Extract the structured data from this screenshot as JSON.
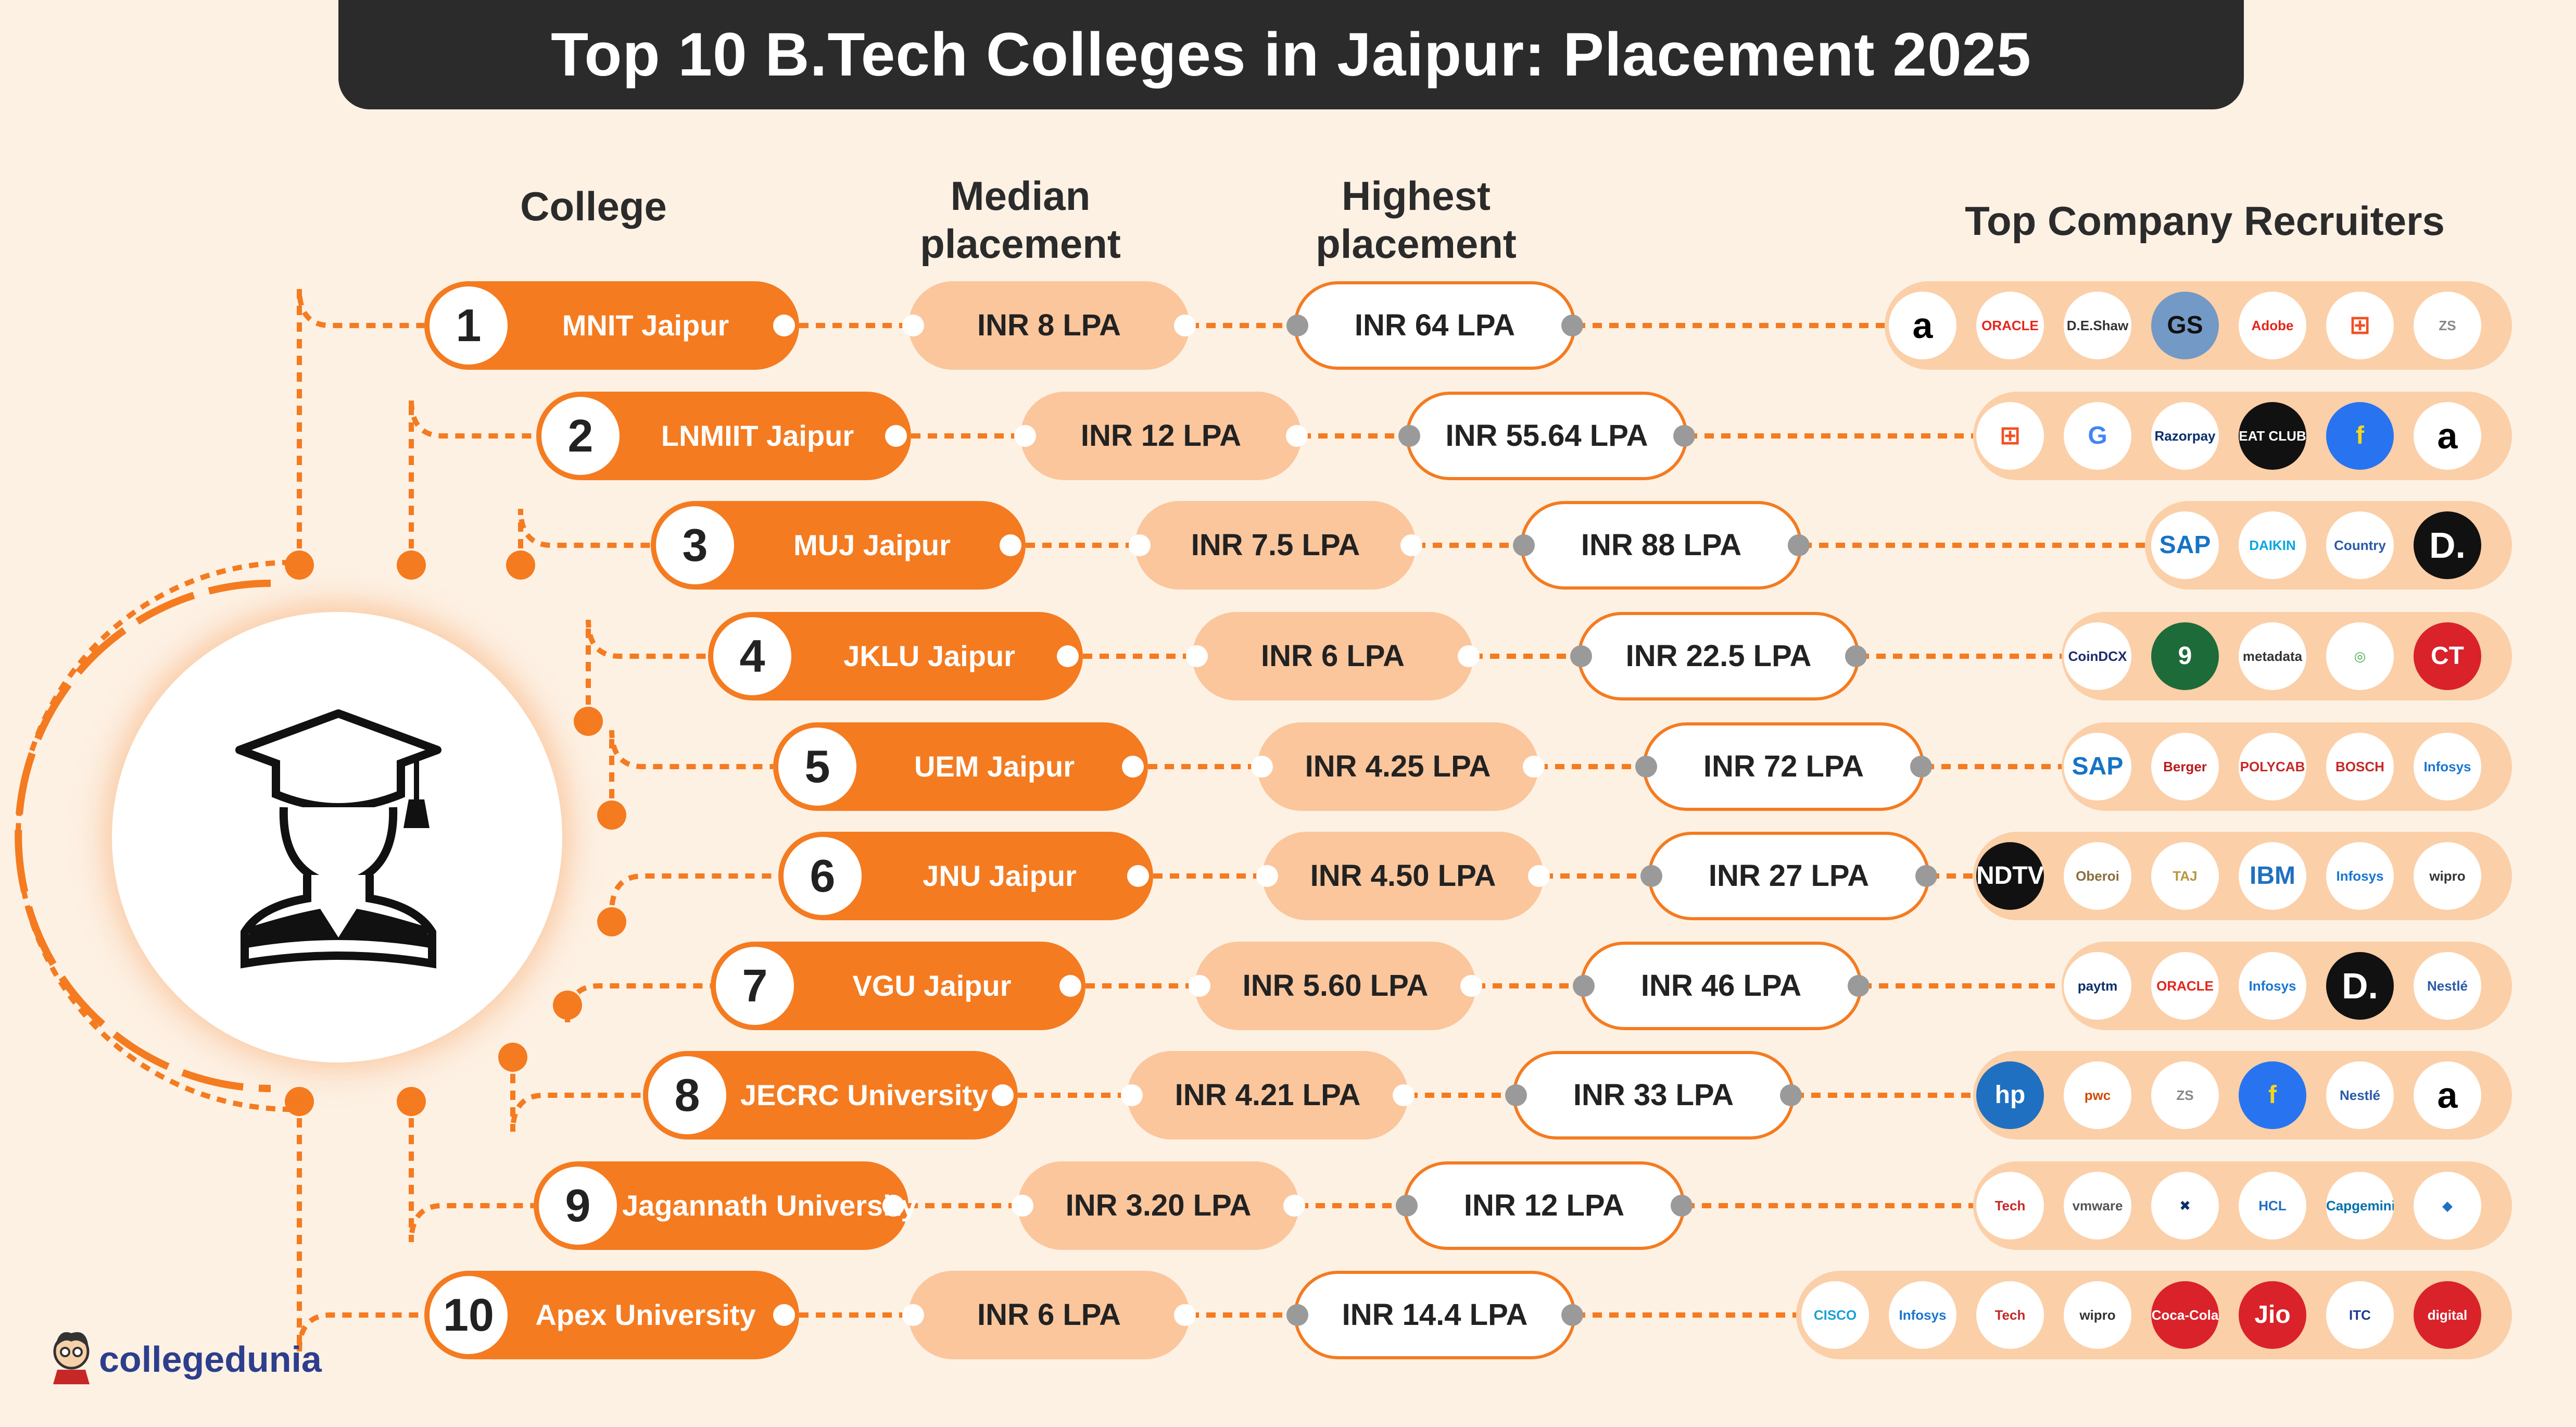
{
  "title": "Top 10  B.Tech Colleges in Jaipur: Placement 2025",
  "headers": {
    "college": "College",
    "median": [
      "Median",
      "placement"
    ],
    "highest": [
      "Highest",
      "placement"
    ],
    "recruiters": "Top Company Recruiters"
  },
  "rows": [
    {
      "num": "1",
      "college": "MNIT Jaipur",
      "median": "INR 8 LPA",
      "highest": "INR 64 LPA",
      "recruiters": [
        {
          "name": "amazon",
          "text": "a",
          "color": "#000"
        },
        {
          "name": "oracle",
          "text": "ORACLE",
          "color": "#e4261c"
        },
        {
          "name": "de-shaw",
          "text": "D.E.Shaw & Co",
          "color": "#333"
        },
        {
          "name": "goldman-sachs",
          "text": "GS",
          "color": "#7399c6"
        },
        {
          "name": "adobe",
          "text": "Adobe",
          "color": "#e4261c"
        },
        {
          "name": "microsoft",
          "text": "⊞",
          "color": "#f25022"
        },
        {
          "name": "zs",
          "text": "ZS",
          "color": "#888"
        }
      ]
    },
    {
      "num": "2",
      "college": "LNMIIT Jaipur",
      "median": "INR 12 LPA",
      "highest": "INR 55.64 LPA",
      "recruiters": [
        {
          "name": "microsoft",
          "text": "⊞",
          "color": "#f25022"
        },
        {
          "name": "google",
          "text": "G",
          "color": "#4285f4"
        },
        {
          "name": "razorpay",
          "text": "Razorpay",
          "color": "#0b2e6b"
        },
        {
          "name": "eatclub",
          "text": "EAT CLUB",
          "color": "#fff"
        },
        {
          "name": "flipkart",
          "text": "f",
          "color": "#f7d51d"
        },
        {
          "name": "amazon",
          "text": "a",
          "color": "#000"
        }
      ]
    },
    {
      "num": "3",
      "college": "MUJ Jaipur",
      "median": "INR 7.5 LPA",
      "highest": "INR 88 LPA",
      "recruiters": [
        {
          "name": "sap",
          "text": "SAP",
          "color": "#1673c6"
        },
        {
          "name": "daikin",
          "text": "DAIKIN",
          "color": "#0aa5e0"
        },
        {
          "name": "country-delight",
          "text": "Country Delight",
          "color": "#2a5aa8"
        },
        {
          "name": "d-logo",
          "text": "D.",
          "color": "#fff"
        }
      ]
    },
    {
      "num": "4",
      "college": "JKLU Jaipur",
      "median": "INR 6 LPA",
      "highest": "INR 22.5 LPA",
      "recruiters": [
        {
          "name": "coindcx",
          "text": "CoinDCX",
          "color": "#1b2a6b"
        },
        {
          "name": "nine-logo",
          "text": "9",
          "color": "#fff"
        },
        {
          "name": "metadata",
          "text": "metadata",
          "color": "#333"
        },
        {
          "name": "swirl-logo",
          "text": "◎",
          "color": "#4caf50"
        },
        {
          "name": "ct-logo",
          "text": "CT",
          "color": "#fff"
        }
      ]
    },
    {
      "num": "5",
      "college": "UEM Jaipur",
      "median": "INR 4.25 LPA",
      "highest": "INR 72 LPA",
      "recruiters": [
        {
          "name": "sap",
          "text": "SAP",
          "color": "#1673c6"
        },
        {
          "name": "berger",
          "text": "Berger",
          "color": "#b71c1c"
        },
        {
          "name": "polycab",
          "text": "POLYCAB",
          "color": "#c62828"
        },
        {
          "name": "bosch",
          "text": "BOSCH",
          "color": "#c62828"
        },
        {
          "name": "infosys",
          "text": "Infosys",
          "color": "#1976d2"
        }
      ]
    },
    {
      "num": "6",
      "college": "JNU Jaipur",
      "median": "INR 4.50 LPA",
      "highest": "INR 27 LPA",
      "recruiters": [
        {
          "name": "ndtv",
          "text": "NDTV",
          "color": "#fff"
        },
        {
          "name": "oberoi",
          "text": "Oberoi",
          "color": "#8a6d3b"
        },
        {
          "name": "taj",
          "text": "TAJ",
          "color": "#b8963e"
        },
        {
          "name": "ibm",
          "text": "IBM",
          "color": "#1f70c1"
        },
        {
          "name": "infosys",
          "text": "Infosys",
          "color": "#1976d2"
        },
        {
          "name": "wipro",
          "text": "wipro",
          "color": "#333"
        }
      ]
    },
    {
      "num": "7",
      "college": "VGU Jaipur",
      "median": "INR 5.60 LPA",
      "highest": "INR 46 LPA",
      "recruiters": [
        {
          "name": "paytm",
          "text": "paytm",
          "color": "#0b2e6b"
        },
        {
          "name": "oracle",
          "text": "ORACLE",
          "color": "#e4261c"
        },
        {
          "name": "infosys",
          "text": "Infosys",
          "color": "#1976d2"
        },
        {
          "name": "d-logo",
          "text": "D.",
          "color": "#fff"
        },
        {
          "name": "nestle",
          "text": "Nestlé",
          "color": "#2a5aa8"
        }
      ]
    },
    {
      "num": "8",
      "college": "JECRC University",
      "median": "INR 4.21 LPA",
      "highest": "INR 33 LPA",
      "recruiters": [
        {
          "name": "hp",
          "text": "hp",
          "color": "#fff"
        },
        {
          "name": "pwc",
          "text": "pwc",
          "color": "#d04a02"
        },
        {
          "name": "zs",
          "text": "ZS",
          "color": "#888"
        },
        {
          "name": "flipkart",
          "text": "f",
          "color": "#f7d51d"
        },
        {
          "name": "nestle",
          "text": "Nestlé",
          "color": "#2a5aa8"
        },
        {
          "name": "amazon",
          "text": "a",
          "color": "#000"
        }
      ]
    },
    {
      "num": "9",
      "college": "Jagannath University",
      "median": "INR 3.20 LPA",
      "highest": "INR 12 LPA",
      "recruiters": [
        {
          "name": "tech-mahindra",
          "text": "Tech Mahindra",
          "color": "#c62828"
        },
        {
          "name": "vmware",
          "text": "vmware",
          "color": "#555"
        },
        {
          "name": "bank-logo",
          "text": "✖",
          "color": "#0b2e6b"
        },
        {
          "name": "hcl",
          "text": "HCL",
          "color": "#1f70c1"
        },
        {
          "name": "capgemini",
          "text": "Capgemini",
          "color": "#0070ad"
        },
        {
          "name": "cube-logo",
          "text": "◆",
          "color": "#1f70c1"
        }
      ]
    },
    {
      "num": "10",
      "college": "Apex University",
      "median": "INR 6 LPA",
      "highest": "INR 14.4 LPA",
      "recruiters": [
        {
          "name": "cisco",
          "text": "CISCO",
          "color": "#1ba0d7"
        },
        {
          "name": "infosys",
          "text": "Infosys",
          "color": "#1976d2"
        },
        {
          "name": "tech-mahindra",
          "text": "Tech Mahindra",
          "color": "#c62828"
        },
        {
          "name": "wipro",
          "text": "wipro",
          "color": "#333"
        },
        {
          "name": "coca-cola",
          "text": "Coca-Cola",
          "color": "#fff"
        },
        {
          "name": "jio",
          "text": "Jio",
          "color": "#fff"
        },
        {
          "name": "itc",
          "text": "ITC",
          "color": "#1b3a8c"
        },
        {
          "name": "reliance-digital",
          "text": "digital",
          "color": "#fff"
        }
      ]
    }
  ],
  "brand": "collegedunia",
  "colors": {
    "orange": "#f47b20",
    "peach": "#fbc69c",
    "background": "#fdf1e4",
    "dark": "#2b2b2b"
  }
}
